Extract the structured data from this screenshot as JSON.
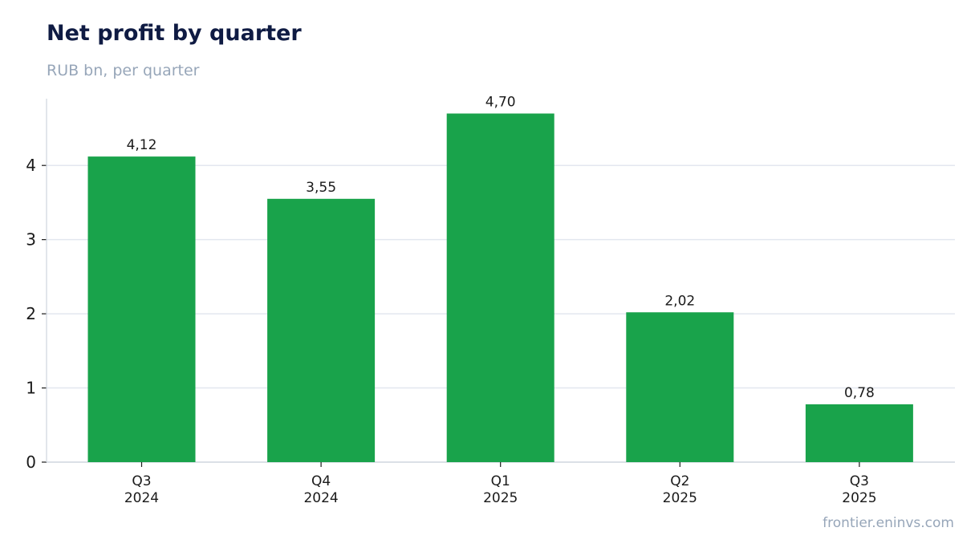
{
  "header": {
    "title": "Net profit by quarter",
    "subtitle": "RUB bn, per quarter"
  },
  "footer": {
    "source": "frontier.eninvs.com"
  },
  "colors": {
    "bar": "#19a34b",
    "grid": "#e3e7ef",
    "axis": "#cfd5de",
    "text": "#1a1a1a"
  },
  "chart_data": {
    "type": "bar",
    "title": "Net profit by quarter",
    "subtitle": "RUB bn, per quarter",
    "categories": [
      [
        "Q3",
        "2024"
      ],
      [
        "Q4",
        "2024"
      ],
      [
        "Q1",
        "2025"
      ],
      [
        "Q2",
        "2025"
      ],
      [
        "Q3",
        "2025"
      ]
    ],
    "values": [
      4.12,
      3.55,
      4.7,
      2.02,
      0.78
    ],
    "value_labels": [
      "4,12",
      "3,55",
      "4,70",
      "2,02",
      "0,78"
    ],
    "yticks": [
      0,
      1,
      2,
      3,
      4
    ],
    "ylim": [
      0,
      4.9
    ],
    "grid": true,
    "xlabel": "",
    "ylabel": ""
  }
}
